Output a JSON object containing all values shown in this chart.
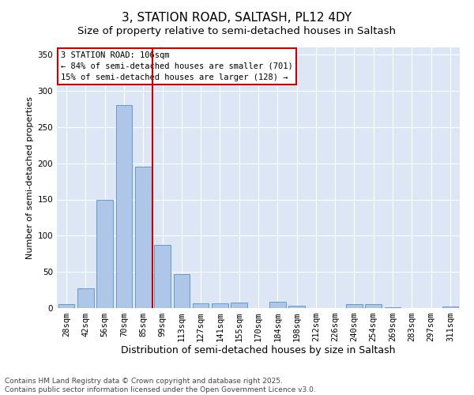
{
  "title": "3, STATION ROAD, SALTASH, PL12 4DY",
  "subtitle": "Size of property relative to semi-detached houses in Saltash",
  "xlabel": "Distribution of semi-detached houses by size in Saltash",
  "ylabel": "Number of semi-detached properties",
  "categories": [
    "28sqm",
    "42sqm",
    "56sqm",
    "70sqm",
    "85sqm",
    "99sqm",
    "113sqm",
    "127sqm",
    "141sqm",
    "155sqm",
    "170sqm",
    "184sqm",
    "198sqm",
    "212sqm",
    "226sqm",
    "240sqm",
    "254sqm",
    "269sqm",
    "283sqm",
    "297sqm",
    "311sqm"
  ],
  "values": [
    5,
    27,
    150,
    280,
    195,
    87,
    47,
    7,
    7,
    8,
    0,
    9,
    3,
    0,
    0,
    5,
    6,
    1,
    0,
    0,
    2
  ],
  "bar_color": "#aec6e8",
  "bar_edge_color": "#5a8fc0",
  "vline_bin_index": 5,
  "annotation_title": "3 STATION ROAD: 106sqm",
  "annotation_line1": "← 84% of semi-detached houses are smaller (701)",
  "annotation_line2": "15% of semi-detached houses are larger (128) →",
  "annotation_box_color": "#ffffff",
  "annotation_box_edge": "#cc0000",
  "vline_color": "#cc0000",
  "ylim": [
    0,
    360
  ],
  "yticks": [
    0,
    50,
    100,
    150,
    200,
    250,
    300,
    350
  ],
  "background_color": "#dce6f5",
  "footer_line1": "Contains HM Land Registry data © Crown copyright and database right 2025.",
  "footer_line2": "Contains public sector information licensed under the Open Government Licence v3.0.",
  "title_fontsize": 11,
  "subtitle_fontsize": 9.5,
  "xlabel_fontsize": 9,
  "ylabel_fontsize": 8,
  "tick_fontsize": 7.5,
  "annotation_fontsize": 7.5,
  "footer_fontsize": 6.5
}
